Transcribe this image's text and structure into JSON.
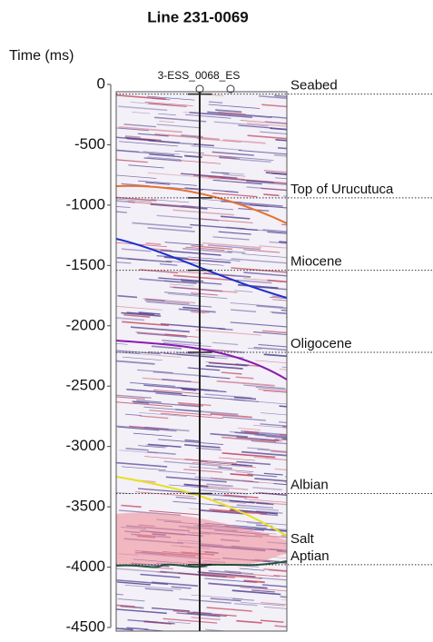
{
  "chart_data": {
    "type": "seismic",
    "title": "Line 231-0069",
    "y_label": "Time (ms)",
    "well": "3-ESS_0068_ES",
    "ylim": [
      -4500,
      0
    ],
    "yticks": [
      0,
      -500,
      -1000,
      -1500,
      -2000,
      -2500,
      -3000,
      -3500,
      -4000,
      -4500
    ],
    "horizons": [
      {
        "name": "Seabed",
        "value": -80
      },
      {
        "name": "Top of Urucutuca",
        "value": -940
      },
      {
        "name": "Miocene",
        "value": -1540
      },
      {
        "name": "Oligocene",
        "value": -2220
      },
      {
        "name": "Albian",
        "value": -3390
      },
      {
        "name": "Aptian",
        "value": -3980
      }
    ],
    "annotations": [
      "Salt"
    ]
  }
}
